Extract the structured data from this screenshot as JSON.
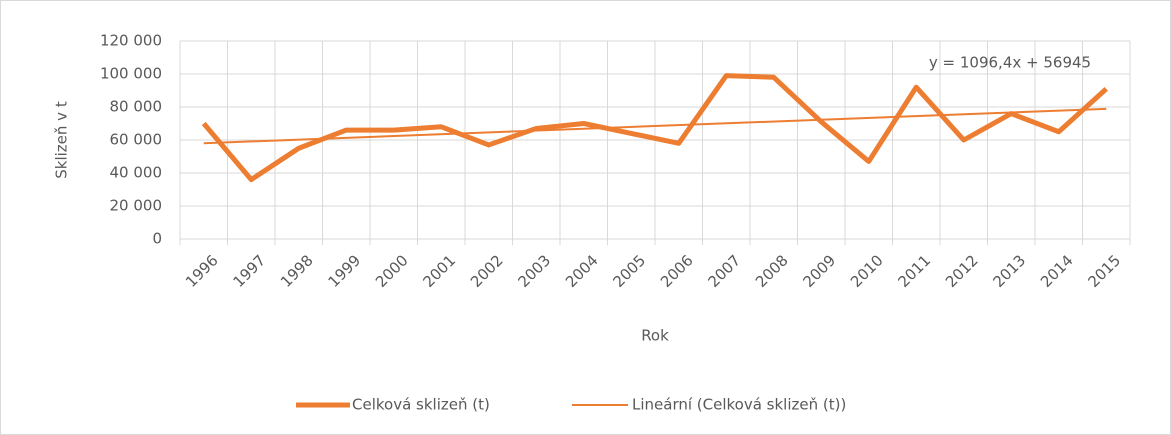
{
  "chart_data": {
    "type": "line",
    "y_axis_label": "Sklizeň v t",
    "x_axis_label": "Rok",
    "categories": [
      "1996",
      "1997",
      "1998",
      "1999",
      "2000",
      "2001",
      "2002",
      "2003",
      "2004",
      "2005",
      "2006",
      "2007",
      "2008",
      "2009",
      "2010",
      "2011",
      "2012",
      "2013",
      "2014",
      "2015"
    ],
    "series": [
      {
        "name": "Celková sklizeň (t)",
        "color": "#ed7d31",
        "values": [
          70000,
          36000,
          55000,
          66000,
          66000,
          68000,
          57000,
          67000,
          70000,
          64000,
          58000,
          99000,
          98000,
          71000,
          47000,
          92000,
          60000,
          76000,
          65000,
          91000
        ]
      }
    ],
    "trendline": {
      "name": "Lineární (Celková sklizeň (t))",
      "color": "#ed7d31",
      "slope": 1096.4,
      "intercept": 56945,
      "label": "y = 1096,4x + 56945"
    },
    "ylim": [
      0,
      120000
    ],
    "yticks": [
      0,
      {
        "value": 20000,
        "label": "20 000"
      },
      {
        "value": 40000,
        "label": "40 000"
      },
      {
        "value": 60000,
        "label": "60 000"
      },
      {
        "value": 80000,
        "label": "80 000"
      },
      {
        "value": 100000,
        "label": "100 000"
      },
      {
        "value": 120000,
        "label": "120 000"
      }
    ],
    "grid": true,
    "legend": "bottom"
  }
}
